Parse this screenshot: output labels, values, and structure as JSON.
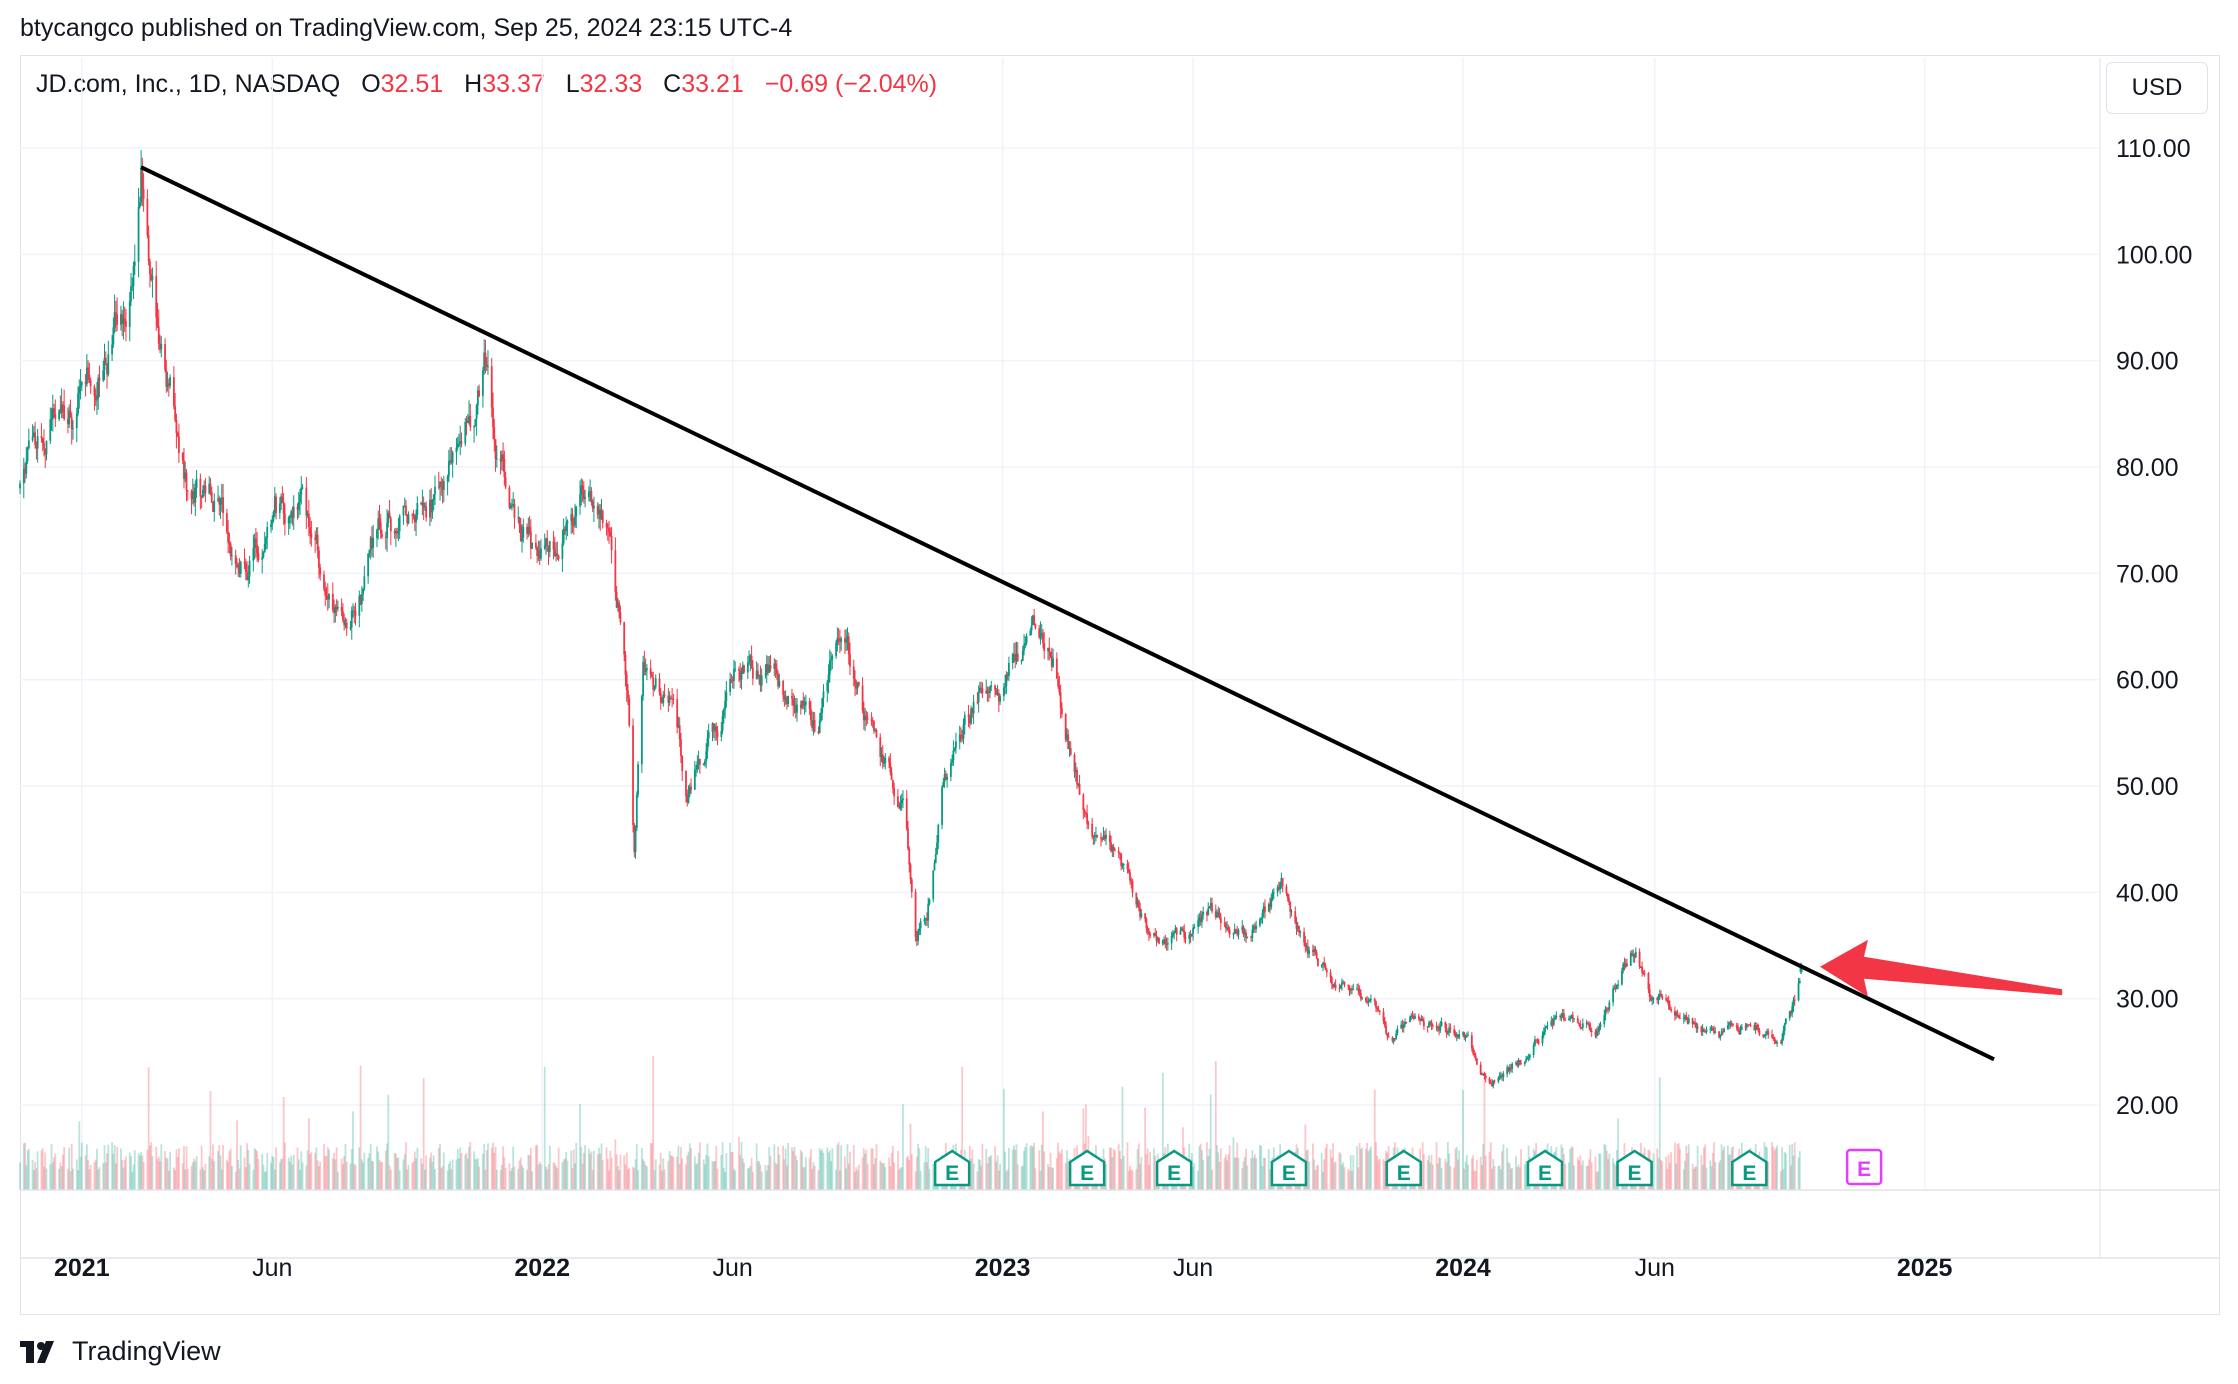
{
  "header": {
    "publisher": "btycangco published on TradingView.com, Sep 25, 2024 23:15 UTC-4"
  },
  "legend": {
    "symbol": "JD.com, Inc., 1D, NASDAQ",
    "o_label": "O",
    "o_value": "32.51",
    "h_label": "H",
    "h_value": "33.37",
    "l_label": "L",
    "l_value": "32.33",
    "c_label": "C",
    "c_value": "33.21",
    "change": "−0.69 (−2.04%)"
  },
  "currency": "USD",
  "footer": {
    "brand": "TradingView"
  },
  "colors": {
    "up": "#089981",
    "down": "#f23645",
    "trendline": "#000000",
    "arrow": "#f23645",
    "grid": "#f0f3fa",
    "earnings_past": "#089981",
    "earnings_future": "#e040fb"
  },
  "chart_data": {
    "type": "candlestick",
    "title": "JD.com, Inc., 1D, NASDAQ",
    "ylabel": "USD",
    "ylim": [
      12,
      118
    ],
    "y_ticks": [
      "110.00",
      "100.00",
      "90.00",
      "80.00",
      "70.00",
      "60.00",
      "50.00",
      "40.00",
      "30.00",
      "20.00"
    ],
    "y_tick_values": [
      110,
      100,
      90,
      80,
      70,
      60,
      50,
      40,
      30,
      20
    ],
    "x_ticks": [
      "2021",
      "Jun",
      "2022",
      "Jun",
      "2023",
      "Jun",
      "2024",
      "Jun",
      "2025"
    ],
    "x_tick_dates": [
      "2021-01-01",
      "2021-06-01",
      "2022-01-01",
      "2022-06-01",
      "2023-01-01",
      "2023-06-01",
      "2024-01-01",
      "2024-06-01",
      "2025-01-01"
    ],
    "x_tick_bold": [
      true,
      false,
      true,
      false,
      true,
      false,
      true,
      false,
      true
    ],
    "x_range": [
      "2020-11-13",
      "2025-05-20"
    ],
    "price_path": [
      [
        "2020-11-13",
        78
      ],
      [
        "2020-12-10",
        84
      ],
      [
        "2021-01-04",
        88
      ],
      [
        "2021-01-20",
        90
      ],
      [
        "2021-02-12",
        100
      ],
      [
        "2021-02-17",
        108
      ],
      [
        "2021-02-25",
        96
      ],
      [
        "2021-03-10",
        87
      ],
      [
        "2021-03-25",
        80
      ],
      [
        "2021-04-15",
        77
      ],
      [
        "2021-05-12",
        70
      ],
      [
        "2021-06-03",
        76
      ],
      [
        "2021-06-25",
        74
      ],
      [
        "2021-07-27",
        63
      ],
      [
        "2021-08-20",
        72
      ],
      [
        "2021-09-15",
        77
      ],
      [
        "2021-10-01",
        75
      ],
      [
        "2021-10-25",
        82
      ],
      [
        "2021-11-17",
        90
      ],
      [
        "2021-11-25",
        81
      ],
      [
        "2021-12-15",
        74
      ],
      [
        "2022-01-05",
        70
      ],
      [
        "2022-01-25",
        74
      ],
      [
        "2022-02-10",
        78
      ],
      [
        "2022-02-25",
        72
      ],
      [
        "2022-03-10",
        60
      ],
      [
        "2022-03-15",
        45
      ],
      [
        "2022-03-22",
        62
      ],
      [
        "2022-04-15",
        57
      ],
      [
        "2022-04-26",
        50
      ],
      [
        "2022-05-15",
        55
      ],
      [
        "2022-06-15",
        62
      ],
      [
        "2022-07-15",
        59
      ],
      [
        "2022-08-08",
        55
      ],
      [
        "2022-08-25",
        66
      ],
      [
        "2022-09-15",
        56
      ],
      [
        "2022-10-15",
        47
      ],
      [
        "2022-10-24",
        36
      ],
      [
        "2022-11-02",
        38
      ],
      [
        "2022-11-15",
        50
      ],
      [
        "2022-12-10",
        58
      ],
      [
        "2023-01-03",
        60
      ],
      [
        "2023-01-26",
        66
      ],
      [
        "2023-02-15",
        60
      ],
      [
        "2023-03-02",
        50
      ],
      [
        "2023-03-25",
        44
      ],
      [
        "2023-04-25",
        37
      ],
      [
        "2023-05-25",
        36
      ],
      [
        "2023-06-15",
        38
      ],
      [
        "2023-07-15",
        36
      ],
      [
        "2023-08-10",
        40
      ],
      [
        "2023-09-10",
        33
      ],
      [
        "2023-10-15",
        30
      ],
      [
        "2023-11-05",
        26
      ],
      [
        "2023-12-05",
        28
      ],
      [
        "2024-01-05",
        26
      ],
      [
        "2024-01-22",
        22
      ],
      [
        "2024-02-15",
        24
      ],
      [
        "2024-03-15",
        28
      ],
      [
        "2024-04-15",
        27
      ],
      [
        "2024-05-17",
        35
      ],
      [
        "2024-05-31",
        30
      ],
      [
        "2024-06-30",
        28
      ],
      [
        "2024-07-25",
        26
      ],
      [
        "2024-08-15",
        27
      ],
      [
        "2024-09-10",
        27
      ],
      [
        "2024-09-20",
        30
      ],
      [
        "2024-09-25",
        33.21
      ]
    ],
    "last_candle": {
      "date": "2024-09-25",
      "open": 32.51,
      "high": 33.37,
      "low": 32.33,
      "close": 33.21
    },
    "trendline": {
      "start": [
        "2021-02-17",
        108.2
      ],
      "end": [
        "2025-02-25",
        24.3
      ]
    },
    "arrow_annotation": {
      "tail": [
        "2025-04-20",
        30.6
      ],
      "head": [
        "2024-10-10",
        33.0
      ]
    },
    "earnings_markers": {
      "label": "E",
      "past": [
        "2022-11-22",
        "2023-03-09",
        "2023-05-17",
        "2023-08-16",
        "2023-11-15",
        "2024-03-06",
        "2024-05-16",
        "2024-08-15"
      ],
      "upcoming": [
        "2024-11-14"
      ]
    },
    "volume_note": "volume histogram pane at bottom of price area"
  }
}
